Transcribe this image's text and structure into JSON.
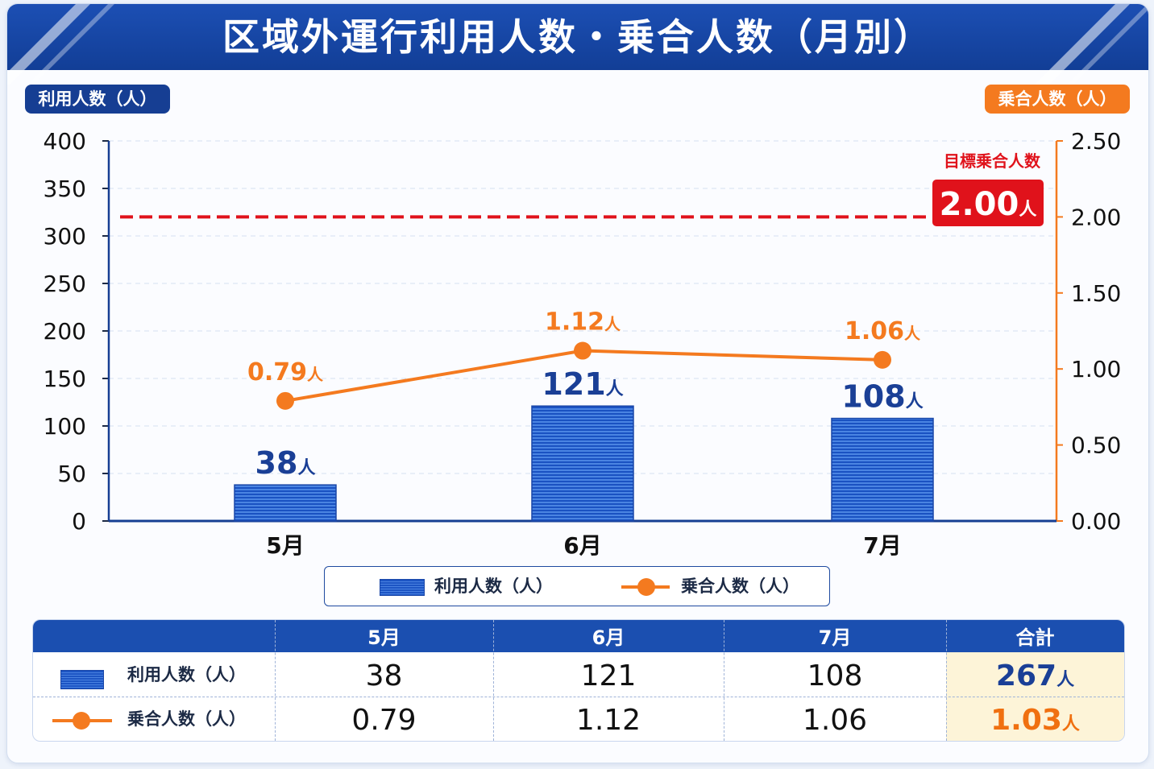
{
  "title": "区域外運行利用人数・乗合人数（月別）",
  "axis_labels": {
    "left": "利用人数（人）",
    "right": "乗合人数（人）"
  },
  "unit": "人",
  "colors": {
    "primary": "#163e93",
    "accent": "#f47a1f",
    "target": "#e0121b"
  },
  "chart_data": {
    "type": "bar",
    "categories": [
      "5月",
      "6月",
      "7月"
    ],
    "series": [
      {
        "name": "利用人数（人）",
        "type": "bar",
        "axis": "left",
        "values": [
          38,
          121,
          108
        ],
        "labels": [
          "38",
          "121",
          "108"
        ]
      },
      {
        "name": "乗合人数（人）",
        "type": "line",
        "axis": "right",
        "values": [
          0.79,
          1.12,
          1.06
        ],
        "labels": [
          "0.79",
          "1.12",
          "1.06"
        ]
      }
    ],
    "y_left": {
      "range": [
        0,
        400
      ],
      "ticks": [
        "0",
        "50",
        "100",
        "150",
        "200",
        "250",
        "300",
        "350",
        "400"
      ]
    },
    "y_right": {
      "range": [
        0,
        2.5
      ],
      "ticks": [
        "0.00",
        "0.50",
        "1.00",
        "1.50",
        "2.00",
        "2.50"
      ]
    },
    "target": {
      "label": "目標乗合人数",
      "value": 2.0,
      "value_text": "2.00"
    },
    "legend": [
      "利用人数（人）",
      "乗合人数（人）"
    ]
  },
  "table": {
    "headers": [
      "5月",
      "6月",
      "7月",
      "合計"
    ],
    "rows": [
      {
        "label": "利用人数（人）",
        "values": [
          "38",
          "121",
          "108"
        ],
        "total": "267"
      },
      {
        "label": "乗合人数（人）",
        "values": [
          "0.79",
          "1.12",
          "1.06"
        ],
        "total": "1.03"
      }
    ]
  }
}
